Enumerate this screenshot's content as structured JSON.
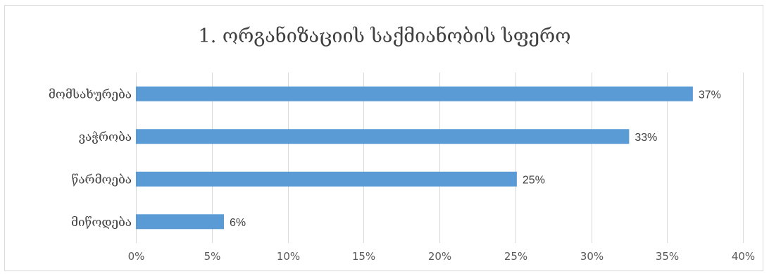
{
  "chart_data": {
    "type": "bar",
    "orientation": "horizontal",
    "title": "1. ორგანიზაციის საქმიანობის სფერო",
    "categories": [
      "მომსახურება",
      "ვაჭრობა",
      "წარმოება",
      "მიწოდება"
    ],
    "values": [
      36.7,
      32.5,
      25.1,
      5.8
    ],
    "data_labels": [
      "37%",
      "33%",
      "25%",
      "6%"
    ],
    "xlim": [
      0,
      40
    ],
    "x_ticks": [
      "0%",
      "5%",
      "10%",
      "15%",
      "20%",
      "25%",
      "30%",
      "35%",
      "40%"
    ],
    "grid": "vertical",
    "legend": "none",
    "bar_color": "#5b9bd5",
    "grid_color": "#d9d9d9"
  }
}
